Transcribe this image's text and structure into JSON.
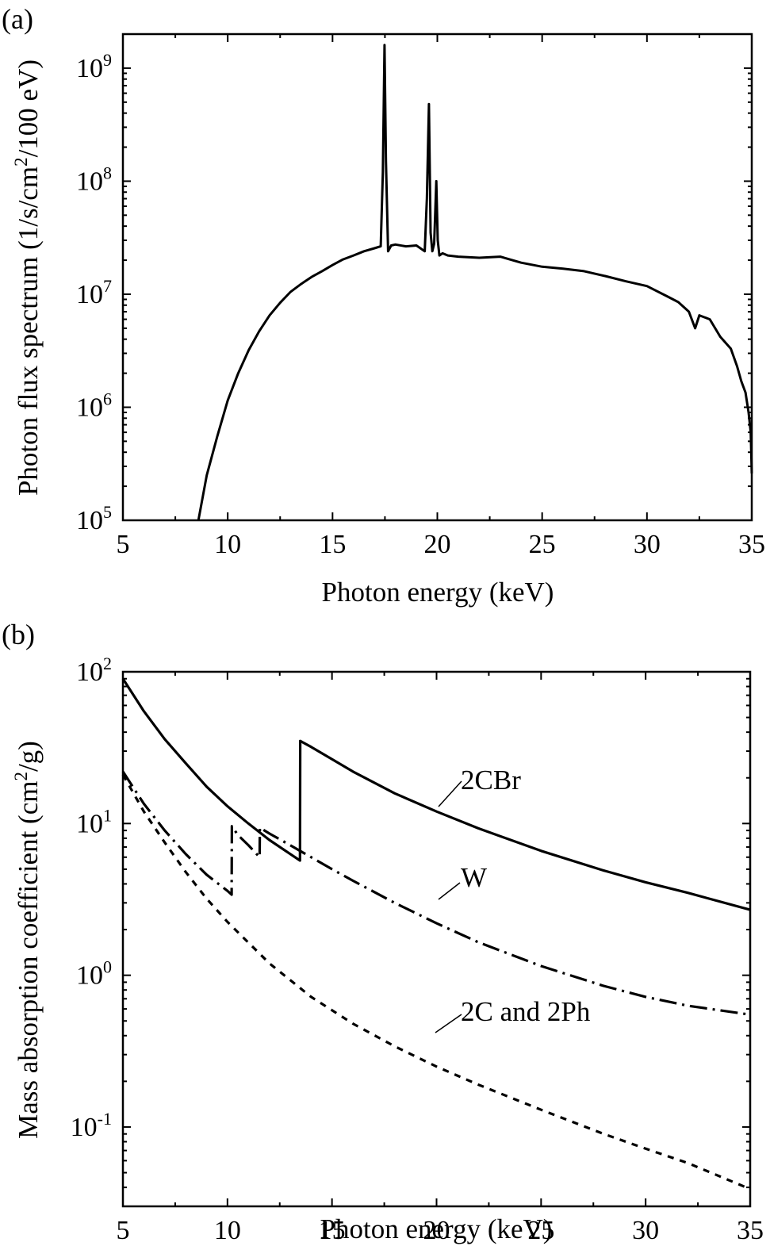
{
  "chart_data": [
    {
      "panel_label": "(a)",
      "type": "line",
      "xlabel": "Photon energy (keV)",
      "ylabel_parts": [
        "Photon flux spectrum (1/s/cm",
        "2",
        "/100 eV)"
      ],
      "xlim": [
        5,
        35
      ],
      "ylim": [
        100000,
        2000000000
      ],
      "yscale": "log",
      "xticks": [
        5,
        10,
        15,
        20,
        25,
        30,
        35
      ],
      "xtick_labels": [
        "5",
        "10",
        "15",
        "20",
        "25",
        "30",
        "35"
      ],
      "yticks": [
        100000,
        1000000,
        10000000,
        100000000,
        1000000000
      ],
      "ytick_labels": [
        {
          "base": "10",
          "exp": "5"
        },
        {
          "base": "10",
          "exp": "6"
        },
        {
          "base": "10",
          "exp": "7"
        },
        {
          "base": "10",
          "exp": "8"
        },
        {
          "base": "10",
          "exp": "9"
        }
      ],
      "grid": false,
      "series": [
        {
          "line_style": "solid",
          "color": "#000000",
          "x": [
            8.6,
            9.0,
            9.5,
            10.0,
            10.5,
            11.0,
            11.5,
            12.0,
            12.5,
            13.0,
            13.5,
            14.0,
            14.5,
            15.0,
            15.5,
            16.0,
            16.5,
            17.0,
            17.3,
            17.4,
            17.48,
            17.55,
            17.65,
            17.8,
            18.0,
            18.5,
            19.0,
            19.4,
            19.5,
            19.6,
            19.68,
            19.76,
            19.85,
            19.95,
            20.02,
            20.1,
            20.25,
            20.5,
            21.0,
            22.0,
            23.0,
            24.0,
            25.0,
            26.0,
            27.0,
            28.0,
            29.0,
            30.0,
            31.0,
            31.5,
            32.0,
            32.3,
            32.5,
            33.0,
            33.5,
            34.0,
            34.3,
            34.5,
            34.7,
            34.85,
            34.95,
            35.0
          ],
          "y": [
            100000,
            250000,
            550000,
            1150000,
            2000000,
            3200000,
            4700000,
            6500000,
            8400000,
            10500000,
            12300000,
            14200000,
            16000000,
            18100000,
            20300000,
            22000000,
            24000000,
            25500000,
            26500000,
            120000000,
            1600000000,
            150000000,
            24000000,
            27000000,
            27500000,
            26500000,
            27000000,
            24000000,
            70000000,
            480000000,
            35000000,
            24000000,
            28000000,
            100000000,
            30000000,
            22000000,
            23000000,
            22000000,
            21500000,
            21000000,
            21500000,
            19000000,
            17500000,
            16800000,
            16000000,
            14500000,
            13000000,
            11800000,
            9500000,
            8500000,
            7000000,
            5000000,
            6500000,
            6000000,
            4200000,
            3300000,
            2300000,
            1700000,
            1350000,
            900000,
            600000,
            260000
          ]
        }
      ]
    },
    {
      "panel_label": "(b)",
      "type": "line",
      "xlabel": "Photon energy (keV)",
      "ylabel_parts": [
        "Mass absorption coefficient (cm",
        "2",
        "/g)"
      ],
      "xlim": [
        5,
        35
      ],
      "ylim": [
        0.03,
        100
      ],
      "yscale": "log",
      "xticks": [
        5,
        10,
        15,
        20,
        25,
        30,
        35
      ],
      "xtick_labels": [
        "5",
        "10",
        "15",
        "20",
        "25",
        "30",
        "35"
      ],
      "yticks": [
        0.1,
        1,
        10,
        100
      ],
      "ytick_labels": [
        {
          "base": "10",
          "exp": "-1"
        },
        {
          "base": "10",
          "exp": "0"
        },
        {
          "base": "10",
          "exp": "1"
        },
        {
          "base": "10",
          "exp": "2"
        }
      ],
      "grid": false,
      "series": [
        {
          "name": "2CBr",
          "line_style": "solid",
          "color": "#000000",
          "x": [
            5.0,
            6.0,
            7.0,
            8.0,
            9.0,
            10.0,
            11.0,
            12.0,
            13.0,
            13.47,
            13.48,
            14.0,
            15.0,
            16.0,
            18.0,
            20.0,
            22.0,
            25.0,
            28.0,
            30.0,
            32.0,
            35.0
          ],
          "y": [
            90,
            55,
            36,
            25,
            17.5,
            13,
            10,
            7.8,
            6.3,
            5.7,
            35,
            32,
            26.5,
            22,
            15.8,
            12,
            9.3,
            6.6,
            4.9,
            4.1,
            3.5,
            2.7
          ]
        },
        {
          "name": "W",
          "line_style": "dashdot",
          "color": "#000000",
          "x": [
            5.0,
            6.0,
            7.0,
            8.0,
            9.0,
            10.0,
            10.2,
            10.21,
            10.5,
            11.0,
            11.54,
            11.55,
            12.0,
            13.0,
            14.0,
            15.0,
            16.0,
            18.0,
            20.0,
            22.0,
            25.0,
            28.0,
            30.0,
            32.0,
            35.0
          ],
          "y": [
            22,
            13.5,
            9,
            6.3,
            4.6,
            3.6,
            3.4,
            9.6,
            8.4,
            7.2,
            6.0,
            9.4,
            8.6,
            7.2,
            6.0,
            5.0,
            4.2,
            3.0,
            2.2,
            1.65,
            1.15,
            0.85,
            0.72,
            0.63,
            0.55
          ]
        },
        {
          "name": "2C and 2Ph",
          "line_style": "dotted",
          "color": "#000000",
          "x": [
            5.0,
            6.0,
            7.0,
            8.0,
            9.0,
            10.0,
            12.0,
            14.0,
            16.0,
            18.0,
            20.0,
            22.0,
            25.0,
            28.0,
            30.0,
            32.0,
            35.0
          ],
          "y": [
            21,
            12,
            7.5,
            4.8,
            3.2,
            2.25,
            1.2,
            0.72,
            0.48,
            0.34,
            0.25,
            0.19,
            0.13,
            0.09,
            0.072,
            0.058,
            0.039
          ]
        }
      ],
      "annotations": [
        {
          "text": "2CBr",
          "x": 22.5,
          "y": 16
        },
        {
          "text": "W",
          "x": 21.3,
          "y": 3.2
        },
        {
          "text": "2C and 2Ph",
          "x": 22.5,
          "y": 0.42
        }
      ]
    }
  ]
}
